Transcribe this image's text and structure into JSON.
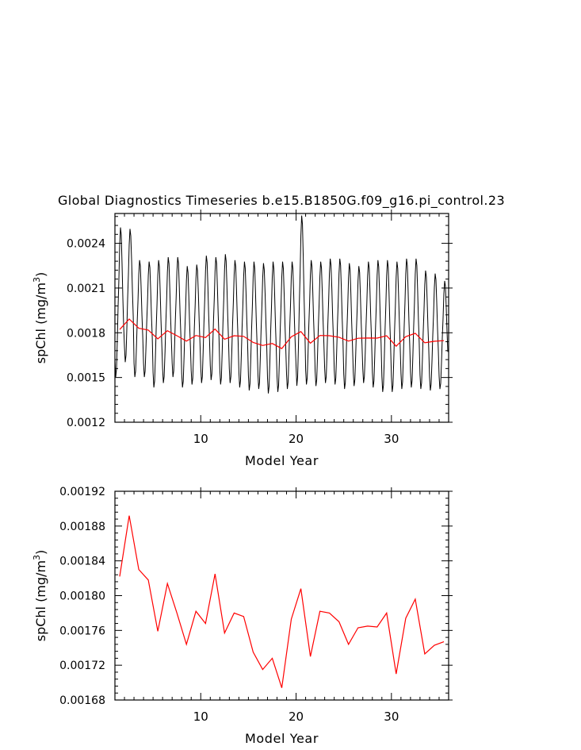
{
  "chart_data": [
    {
      "type": "line",
      "title": "Global Diagnostics Timeseries b.e15.B1850G.f09_g16.pi_control.23",
      "xlabel": "Model Year",
      "ylabel_main": "spChl (mg/m",
      "ylabel_sup": "3",
      "ylabel_tail": ")",
      "xlim": [
        1,
        36
      ],
      "ylim": [
        0.0012,
        0.0026
      ],
      "xticks": [
        10,
        20,
        30
      ],
      "xtick_labels": [
        "10",
        "20",
        "30"
      ],
      "yticks": [
        0.0012,
        0.0015,
        0.0018,
        0.0021,
        0.0024
      ],
      "ytick_labels": [
        "0.0012",
        "0.0015",
        "0.0018",
        "0.0021",
        "0.0024"
      ],
      "series": [
        {
          "kind": "monthly",
          "color": "#000000",
          "annual_min": [
            0.0015,
            0.0016,
            0.0015,
            0.0015,
            0.00143,
            0.00146,
            0.0015,
            0.00143,
            0.00145,
            0.00146,
            0.00148,
            0.00145,
            0.00146,
            0.00143,
            0.00141,
            0.00142,
            0.00139,
            0.0014,
            0.00142,
            0.00144,
            0.00145,
            0.00144,
            0.00146,
            0.00145,
            0.00142,
            0.00144,
            0.00146,
            0.00143,
            0.0014,
            0.0014,
            0.00142,
            0.00143,
            0.00142,
            0.00141,
            0.00142
          ],
          "annual_max": [
            0.00251,
            0.0025,
            0.00229,
            0.00228,
            0.00229,
            0.00231,
            0.00231,
            0.00225,
            0.00226,
            0.00232,
            0.00231,
            0.00233,
            0.00229,
            0.00228,
            0.00228,
            0.00227,
            0.00228,
            0.00228,
            0.00228,
            0.00259,
            0.00229,
            0.00228,
            0.0023,
            0.0023,
            0.00227,
            0.00225,
            0.00228,
            0.00229,
            0.00229,
            0.00228,
            0.0023,
            0.0023,
            0.00222,
            0.0022,
            0.00215
          ]
        },
        {
          "kind": "annual",
          "color": "#ff0000",
          "x": [
            1.5,
            2.5,
            3.5,
            4.5,
            5.5,
            6.5,
            7.5,
            8.5,
            9.5,
            10.5,
            11.5,
            12.5,
            13.5,
            14.5,
            15.5,
            16.5,
            17.5,
            18.5,
            19.5,
            20.5,
            21.5,
            22.5,
            23.5,
            24.5,
            25.5,
            26.5,
            27.5,
            28.5,
            29.5,
            30.5,
            31.5,
            32.5,
            33.5,
            34.5,
            35.5
          ],
          "y": [
            0.001822,
            0.001892,
            0.00183,
            0.001818,
            0.001759,
            0.001814,
            0.00178,
            0.001744,
            0.001782,
            0.001768,
            0.001825,
            0.001757,
            0.00178,
            0.001776,
            0.001735,
            0.001715,
            0.001728,
            0.001694,
            0.001773,
            0.001808,
            0.00173,
            0.001782,
            0.00178,
            0.00177,
            0.001744,
            0.001763,
            0.001765,
            0.001764,
            0.00178,
            0.00171,
            0.001774,
            0.001796,
            0.001733,
            0.001743,
            0.001747
          ]
        }
      ]
    },
    {
      "type": "line",
      "title": "",
      "xlabel": "Model Year",
      "ylabel_main": "spChl (mg/m",
      "ylabel_sup": "3",
      "ylabel_tail": ")",
      "xlim": [
        1,
        36
      ],
      "ylim": [
        0.00168,
        0.00192
      ],
      "xticks": [
        10,
        20,
        30
      ],
      "xtick_labels": [
        "10",
        "20",
        "30"
      ],
      "yticks": [
        0.00168,
        0.00172,
        0.00176,
        0.0018,
        0.00184,
        0.00188,
        0.00192
      ],
      "ytick_labels": [
        "0.00168",
        "0.00172",
        "0.00176",
        "0.00180",
        "0.00184",
        "0.00188",
        "0.00192"
      ],
      "series": [
        {
          "kind": "annual",
          "color": "#ff0000",
          "x": [
            1.5,
            2.5,
            3.5,
            4.5,
            5.5,
            6.5,
            7.5,
            8.5,
            9.5,
            10.5,
            11.5,
            12.5,
            13.5,
            14.5,
            15.5,
            16.5,
            17.5,
            18.5,
            19.5,
            20.5,
            21.5,
            22.5,
            23.5,
            24.5,
            25.5,
            26.5,
            27.5,
            28.5,
            29.5,
            30.5,
            31.5,
            32.5,
            33.5,
            34.5,
            35.5
          ],
          "y": [
            0.001822,
            0.001892,
            0.00183,
            0.001818,
            0.001759,
            0.001814,
            0.00178,
            0.001744,
            0.001782,
            0.001768,
            0.001825,
            0.001757,
            0.00178,
            0.001776,
            0.001735,
            0.001715,
            0.001728,
            0.001694,
            0.001773,
            0.001808,
            0.00173,
            0.001782,
            0.00178,
            0.00177,
            0.001744,
            0.001763,
            0.001765,
            0.001764,
            0.00178,
            0.00171,
            0.001774,
            0.001796,
            0.001733,
            0.001743,
            0.001747
          ]
        }
      ]
    }
  ]
}
